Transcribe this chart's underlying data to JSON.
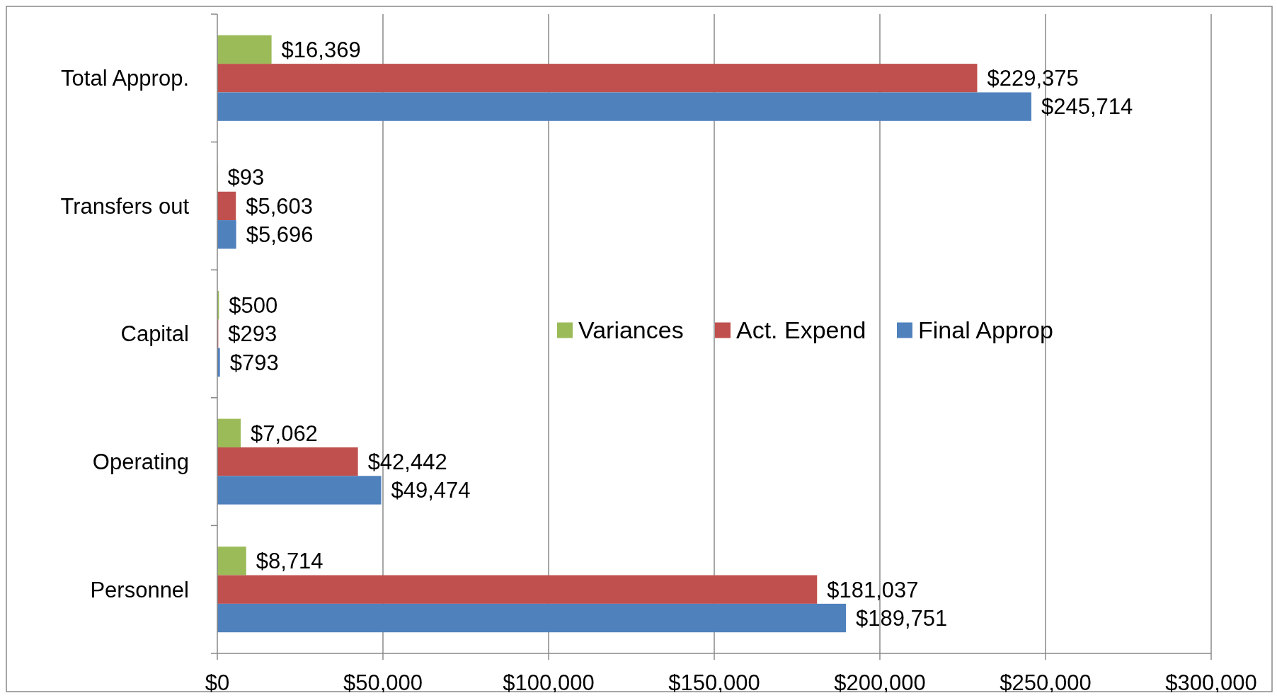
{
  "chart_data": {
    "type": "bar",
    "orientation": "horizontal",
    "categories": [
      "Total Approp.",
      "Transfers out",
      "Capital",
      "Operating",
      "Personnel"
    ],
    "series": [
      {
        "name": "Variances",
        "color": "#9bbb59",
        "values": [
          16369,
          93,
          500,
          7062,
          8714
        ],
        "value_labels": [
          "$16,369",
          "$93",
          "$500",
          "$7,062",
          "$8,714"
        ]
      },
      {
        "name": "Act. Expend",
        "color": "#c0504d",
        "values": [
          229375,
          5603,
          293,
          42442,
          181037
        ],
        "value_labels": [
          "$229,375",
          "$5,603",
          "$293",
          "$42,442",
          "$181,037"
        ]
      },
      {
        "name": "Final Approp",
        "color": "#4f81bd",
        "values": [
          245714,
          5696,
          793,
          49474,
          189751
        ],
        "value_labels": [
          "$245,714",
          "$5,696",
          "$793",
          "$49,474",
          "$189,751"
        ]
      }
    ],
    "xlim": [
      0,
      300000
    ],
    "xticks": [
      {
        "value": 0,
        "label": "$0"
      },
      {
        "value": 50000,
        "label": "$50,000"
      },
      {
        "value": 100000,
        "label": "$100,000"
      },
      {
        "value": 150000,
        "label": "$150,000"
      },
      {
        "value": 200000,
        "label": "$200,000"
      },
      {
        "value": 250000,
        "label": "$250,000"
      },
      {
        "value": 300000,
        "label": "$300,000"
      }
    ],
    "grid": "x",
    "legend": "right"
  }
}
